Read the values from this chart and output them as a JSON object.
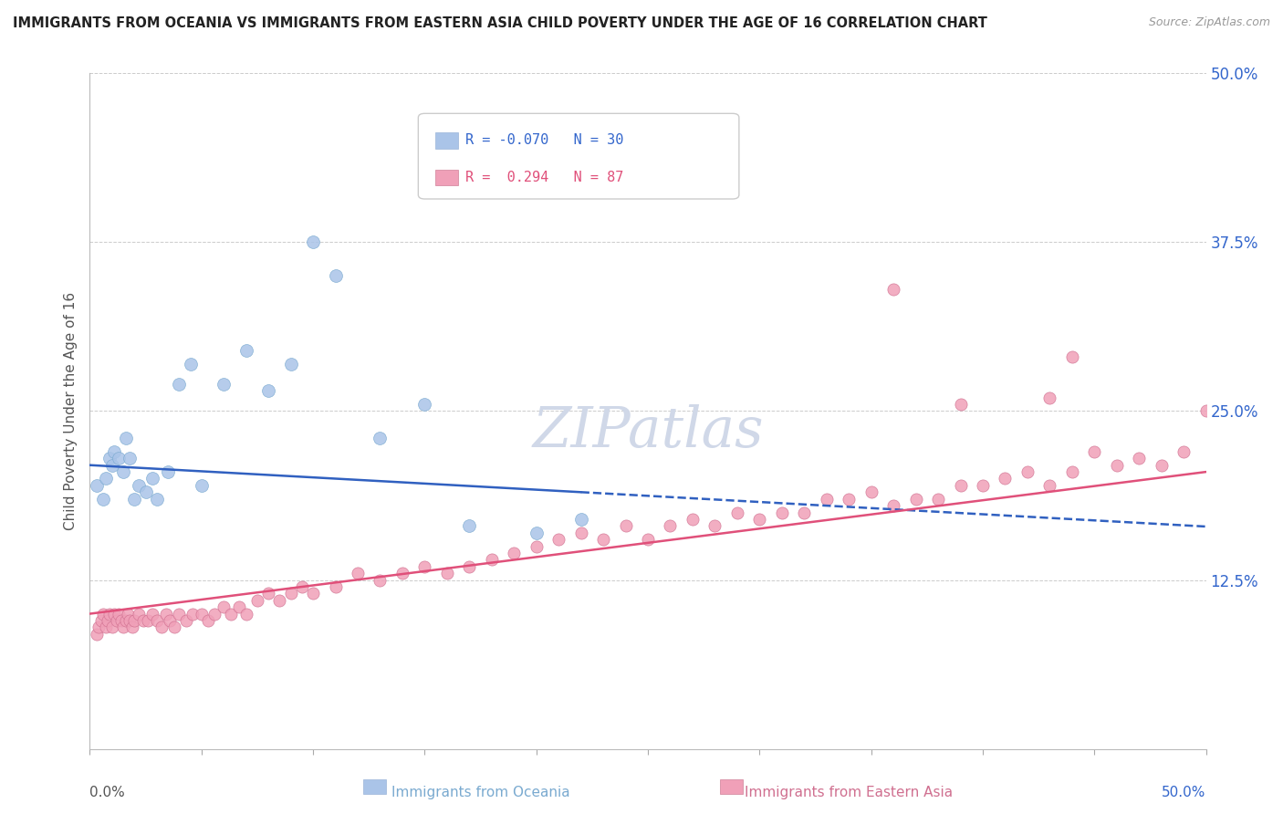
{
  "title": "IMMIGRANTS FROM OCEANIA VS IMMIGRANTS FROM EASTERN ASIA CHILD POVERTY UNDER THE AGE OF 16 CORRELATION CHART",
  "source": "Source: ZipAtlas.com",
  "ylabel": "Child Poverty Under the Age of 16",
  "xmin": 0.0,
  "xmax": 0.5,
  "ymin": 0.0,
  "ymax": 0.5,
  "ytick_values": [
    0.125,
    0.25,
    0.375,
    0.5
  ],
  "ytick_labels": [
    "12.5%",
    "25.0%",
    "37.5%",
    "50.0%"
  ],
  "background_color": "#ffffff",
  "grid_color": "#cccccc",
  "watermark_text": "ZIPatlas",
  "watermark_color": "#d0d8e8",
  "series_oceania": {
    "color": "#aac4e8",
    "edge_color": "#7aaad0",
    "R": -0.07,
    "N": 30,
    "x": [
      0.003,
      0.006,
      0.007,
      0.009,
      0.01,
      0.011,
      0.013,
      0.015,
      0.016,
      0.018,
      0.02,
      0.022,
      0.025,
      0.028,
      0.03,
      0.035,
      0.04,
      0.045,
      0.05,
      0.06,
      0.07,
      0.08,
      0.09,
      0.1,
      0.11,
      0.13,
      0.15,
      0.17,
      0.2,
      0.22
    ],
    "y": [
      0.195,
      0.185,
      0.2,
      0.215,
      0.21,
      0.22,
      0.215,
      0.205,
      0.23,
      0.215,
      0.185,
      0.195,
      0.19,
      0.2,
      0.185,
      0.205,
      0.27,
      0.285,
      0.195,
      0.27,
      0.295,
      0.265,
      0.285,
      0.375,
      0.35,
      0.23,
      0.255,
      0.165,
      0.16,
      0.17
    ]
  },
  "series_eastern_asia": {
    "color": "#f0a0b8",
    "edge_color": "#d07090",
    "R": 0.294,
    "N": 87,
    "x": [
      0.003,
      0.004,
      0.005,
      0.006,
      0.007,
      0.008,
      0.009,
      0.01,
      0.011,
      0.012,
      0.013,
      0.014,
      0.015,
      0.016,
      0.017,
      0.018,
      0.019,
      0.02,
      0.022,
      0.024,
      0.026,
      0.028,
      0.03,
      0.032,
      0.034,
      0.036,
      0.038,
      0.04,
      0.043,
      0.046,
      0.05,
      0.053,
      0.056,
      0.06,
      0.063,
      0.067,
      0.07,
      0.075,
      0.08,
      0.085,
      0.09,
      0.095,
      0.1,
      0.11,
      0.12,
      0.13,
      0.14,
      0.15,
      0.16,
      0.17,
      0.18,
      0.19,
      0.2,
      0.21,
      0.22,
      0.23,
      0.24,
      0.25,
      0.26,
      0.27,
      0.28,
      0.29,
      0.3,
      0.31,
      0.32,
      0.33,
      0.34,
      0.35,
      0.36,
      0.37,
      0.38,
      0.39,
      0.4,
      0.41,
      0.42,
      0.43,
      0.44,
      0.45,
      0.46,
      0.47,
      0.48,
      0.49,
      0.5,
      0.36,
      0.44,
      0.43,
      0.39
    ],
    "y": [
      0.085,
      0.09,
      0.095,
      0.1,
      0.09,
      0.095,
      0.1,
      0.09,
      0.1,
      0.095,
      0.1,
      0.095,
      0.09,
      0.095,
      0.1,
      0.095,
      0.09,
      0.095,
      0.1,
      0.095,
      0.095,
      0.1,
      0.095,
      0.09,
      0.1,
      0.095,
      0.09,
      0.1,
      0.095,
      0.1,
      0.1,
      0.095,
      0.1,
      0.105,
      0.1,
      0.105,
      0.1,
      0.11,
      0.115,
      0.11,
      0.115,
      0.12,
      0.115,
      0.12,
      0.13,
      0.125,
      0.13,
      0.135,
      0.13,
      0.135,
      0.14,
      0.145,
      0.15,
      0.155,
      0.16,
      0.155,
      0.165,
      0.155,
      0.165,
      0.17,
      0.165,
      0.175,
      0.17,
      0.175,
      0.175,
      0.185,
      0.185,
      0.19,
      0.18,
      0.185,
      0.185,
      0.195,
      0.195,
      0.2,
      0.205,
      0.195,
      0.205,
      0.22,
      0.21,
      0.215,
      0.21,
      0.22,
      0.25,
      0.34,
      0.29,
      0.26,
      0.255
    ]
  },
  "trend_oceania": {
    "color": "#3060c0",
    "y_start": 0.21,
    "y_end": 0.19,
    "x_solid_end": 0.22,
    "x_dash_end": 0.5
  },
  "trend_eastern_asia": {
    "color": "#e0507a",
    "y_start": 0.1,
    "y_end": 0.205,
    "x_solid_end": 0.5
  },
  "legend_box_color": "#f8f8ff",
  "legend_border_color": "#cccccc",
  "oceania_label": "Immigrants from Oceania",
  "eastern_asia_label": "Immigrants from Eastern Asia"
}
